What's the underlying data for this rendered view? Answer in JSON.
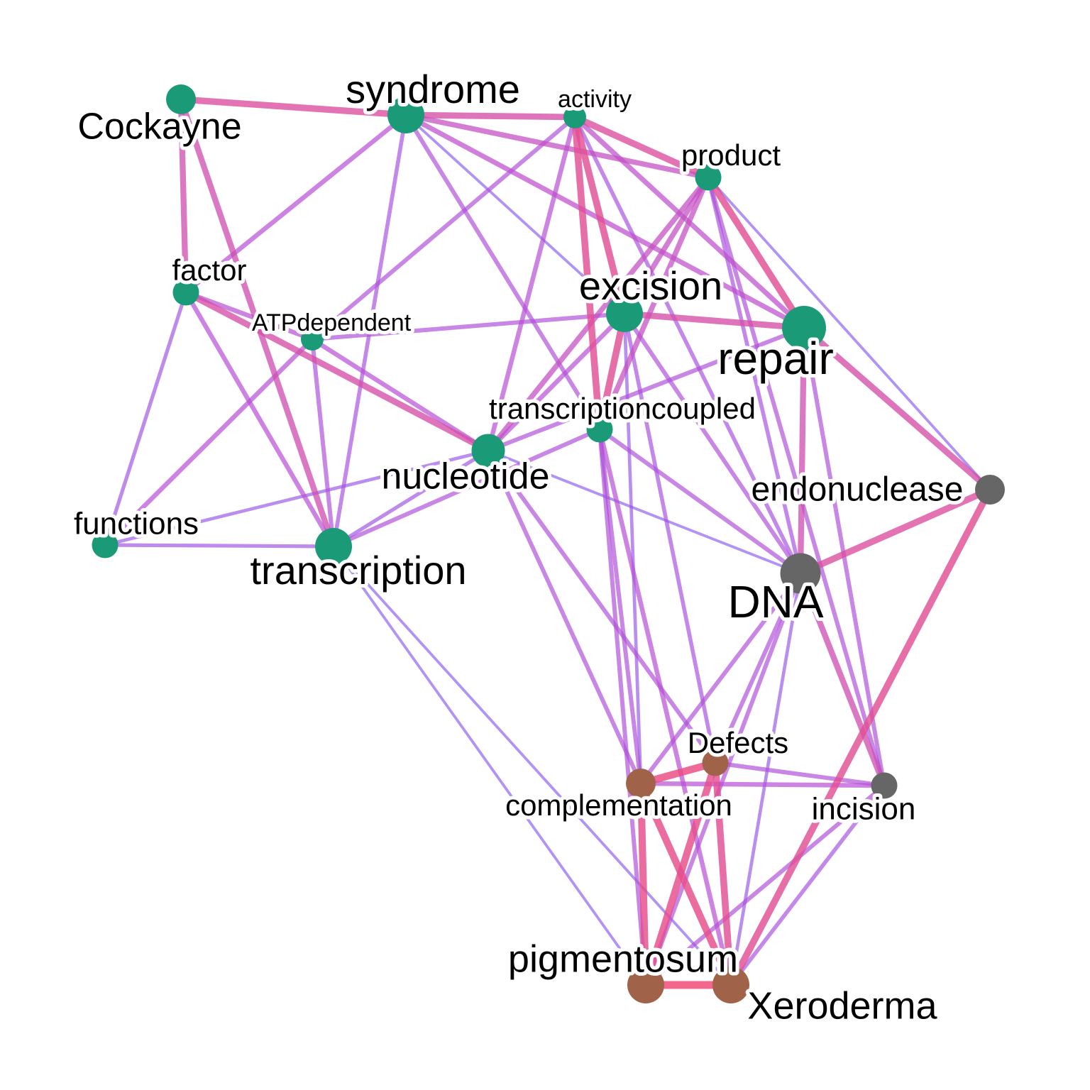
{
  "colors": {
    "cluster_teal": "#1b9a77",
    "cluster_gray": "#666666",
    "cluster_brown": "#a0634a",
    "edge_low": "#5a4cff",
    "edge_mid": "#b84fd6",
    "edge_high": "#f24c78"
  },
  "nodes": [
    {
      "id": "Cockayne",
      "label": "Cockayne",
      "cluster": "teal",
      "weight": 2
    },
    {
      "id": "syndrome",
      "label": "syndrome",
      "cluster": "teal",
      "weight": 3
    },
    {
      "id": "activity",
      "label": "activity",
      "cluster": "teal",
      "weight": 1
    },
    {
      "id": "product",
      "label": "product",
      "cluster": "teal",
      "weight": 1.5
    },
    {
      "id": "factor",
      "label": "factor",
      "cluster": "teal",
      "weight": 1.5
    },
    {
      "id": "ATPdependent",
      "label": "ATPdependent",
      "cluster": "teal",
      "weight": 1
    },
    {
      "id": "excision",
      "label": "excision",
      "cluster": "teal",
      "weight": 3
    },
    {
      "id": "repair",
      "label": "repair",
      "cluster": "teal",
      "weight": 4
    },
    {
      "id": "transcriptioncoupled",
      "label": "transcriptioncoupled",
      "cluster": "teal",
      "weight": 1.5
    },
    {
      "id": "nucleotide",
      "label": "nucleotide",
      "cluster": "teal",
      "weight": 2.5
    },
    {
      "id": "functions",
      "label": "functions",
      "cluster": "teal",
      "weight": 1.5
    },
    {
      "id": "transcription",
      "label": "transcription",
      "cluster": "teal",
      "weight": 3
    },
    {
      "id": "endonuclease",
      "label": "endonuclease",
      "cluster": "gray",
      "weight": 2
    },
    {
      "id": "DNA",
      "label": "DNA",
      "cluster": "gray",
      "weight": 3.5
    },
    {
      "id": "incision",
      "label": "incision",
      "cluster": "gray",
      "weight": 1.5
    },
    {
      "id": "Defects",
      "label": "Defects",
      "cluster": "brown",
      "weight": 1.5
    },
    {
      "id": "complementation",
      "label": "complementation",
      "cluster": "brown",
      "weight": 2
    },
    {
      "id": "pigmentosum",
      "label": "pigmentosum",
      "cluster": "brown",
      "weight": 3
    },
    {
      "id": "Xeroderma",
      "label": "Xeroderma",
      "cluster": "brown",
      "weight": 3
    }
  ],
  "edges": [
    {
      "source": "Cockayne",
      "target": "syndrome",
      "strength": 0.8
    },
    {
      "source": "Cockayne",
      "target": "factor",
      "strength": 0.7
    },
    {
      "source": "Cockayne",
      "target": "transcription",
      "strength": 0.7
    },
    {
      "source": "syndrome",
      "target": "activity",
      "strength": 0.75
    },
    {
      "source": "syndrome",
      "target": "product",
      "strength": 0.6
    },
    {
      "source": "syndrome",
      "target": "repair",
      "strength": 0.55
    },
    {
      "source": "syndrome",
      "target": "factor",
      "strength": 0.5
    },
    {
      "source": "syndrome",
      "target": "transcription",
      "strength": 0.4
    },
    {
      "source": "syndrome",
      "target": "excision",
      "strength": 0.2
    },
    {
      "source": "syndrome",
      "target": "transcriptioncoupled",
      "strength": 0.45
    },
    {
      "source": "activity",
      "target": "product",
      "strength": 0.8
    },
    {
      "source": "activity",
      "target": "excision",
      "strength": 0.85
    },
    {
      "source": "activity",
      "target": "transcriptioncoupled",
      "strength": 0.85
    },
    {
      "source": "activity",
      "target": "nucleotide",
      "strength": 0.5
    },
    {
      "source": "activity",
      "target": "ATPdependent",
      "strength": 0.45
    },
    {
      "source": "activity",
      "target": "repair",
      "strength": 0.55
    },
    {
      "source": "activity",
      "target": "DNA",
      "strength": 0.4
    },
    {
      "source": "product",
      "target": "repair",
      "strength": 0.85
    },
    {
      "source": "product",
      "target": "excision",
      "strength": 0.6
    },
    {
      "source": "product",
      "target": "nucleotide",
      "strength": 0.6
    },
    {
      "source": "product",
      "target": "transcriptioncoupled",
      "strength": 0.6
    },
    {
      "source": "product",
      "target": "endonuclease",
      "strength": 0.2
    },
    {
      "source": "product",
      "target": "DNA",
      "strength": 0.4
    },
    {
      "source": "product",
      "target": "incision",
      "strength": 0.45
    },
    {
      "source": "factor",
      "target": "ATPdependent",
      "strength": 0.5
    },
    {
      "source": "factor",
      "target": "nucleotide",
      "strength": 0.75
    },
    {
      "source": "factor",
      "target": "transcription",
      "strength": 0.5
    },
    {
      "source": "factor",
      "target": "functions",
      "strength": 0.35
    },
    {
      "source": "ATPdependent",
      "target": "excision",
      "strength": 0.45
    },
    {
      "source": "ATPdependent",
      "target": "functions",
      "strength": 0.5
    },
    {
      "source": "ATPdependent",
      "target": "transcription",
      "strength": 0.45
    },
    {
      "source": "ATPdependent",
      "target": "nucleotide",
      "strength": 0.5
    },
    {
      "source": "excision",
      "target": "repair",
      "strength": 0.75
    },
    {
      "source": "excision",
      "target": "transcriptioncoupled",
      "strength": 0.85
    },
    {
      "source": "excision",
      "target": "nucleotide",
      "strength": 0.5
    },
    {
      "source": "excision",
      "target": "DNA",
      "strength": 0.45
    },
    {
      "source": "excision",
      "target": "complementation",
      "strength": 0.3
    },
    {
      "source": "excision",
      "target": "Defects",
      "strength": 0.4
    },
    {
      "source": "repair",
      "target": "DNA",
      "strength": 0.7
    },
    {
      "source": "repair",
      "target": "endonuclease",
      "strength": 0.75
    },
    {
      "source": "repair",
      "target": "incision",
      "strength": 0.45
    },
    {
      "source": "repair",
      "target": "nucleotide",
      "strength": 0.45
    },
    {
      "source": "transcriptioncoupled",
      "target": "transcription",
      "strength": 0.45
    },
    {
      "source": "transcriptioncoupled",
      "target": "Xeroderma",
      "strength": 0.5
    },
    {
      "source": "transcriptioncoupled",
      "target": "pigmentosum",
      "strength": 0.45
    },
    {
      "source": "transcriptioncoupled",
      "target": "DNA",
      "strength": 0.45
    },
    {
      "source": "transcriptioncoupled",
      "target": "complementation",
      "strength": 0.45
    },
    {
      "source": "nucleotide",
      "target": "transcription",
      "strength": 0.35
    },
    {
      "source": "nucleotide",
      "target": "DNA",
      "strength": 0.2
    },
    {
      "source": "nucleotide",
      "target": "Defects",
      "strength": 0.45
    },
    {
      "source": "nucleotide",
      "target": "complementation",
      "strength": 0.45
    },
    {
      "source": "nucleotide",
      "target": "functions",
      "strength": 0.3
    },
    {
      "source": "functions",
      "target": "transcription",
      "strength": 0.35
    },
    {
      "source": "transcription",
      "target": "pigmentosum",
      "strength": 0.2
    },
    {
      "source": "transcription",
      "target": "Xeroderma",
      "strength": 0.2
    },
    {
      "source": "endonuclease",
      "target": "DNA",
      "strength": 0.8
    },
    {
      "source": "endonuclease",
      "target": "Xeroderma",
      "strength": 0.85
    },
    {
      "source": "DNA",
      "target": "incision",
      "strength": 0.7
    },
    {
      "source": "DNA",
      "target": "complementation",
      "strength": 0.45
    },
    {
      "source": "DNA",
      "target": "Defects",
      "strength": 0.45
    },
    {
      "source": "DNA",
      "target": "pigmentosum",
      "strength": 0.45
    },
    {
      "source": "DNA",
      "target": "Xeroderma",
      "strength": 0.3
    },
    {
      "source": "Defects",
      "target": "complementation",
      "strength": 0.95
    },
    {
      "source": "Defects",
      "target": "pigmentosum",
      "strength": 0.9
    },
    {
      "source": "Defects",
      "target": "Xeroderma",
      "strength": 0.85
    },
    {
      "source": "Defects",
      "target": "incision",
      "strength": 0.45
    },
    {
      "source": "complementation",
      "target": "pigmentosum",
      "strength": 0.9
    },
    {
      "source": "complementation",
      "target": "Xeroderma",
      "strength": 0.9
    },
    {
      "source": "complementation",
      "target": "incision",
      "strength": 0.5
    },
    {
      "source": "incision",
      "target": "pigmentosum",
      "strength": 0.45
    },
    {
      "source": "incision",
      "target": "Xeroderma",
      "strength": 0.4
    },
    {
      "source": "pigmentosum",
      "target": "Xeroderma",
      "strength": 1.0
    }
  ]
}
